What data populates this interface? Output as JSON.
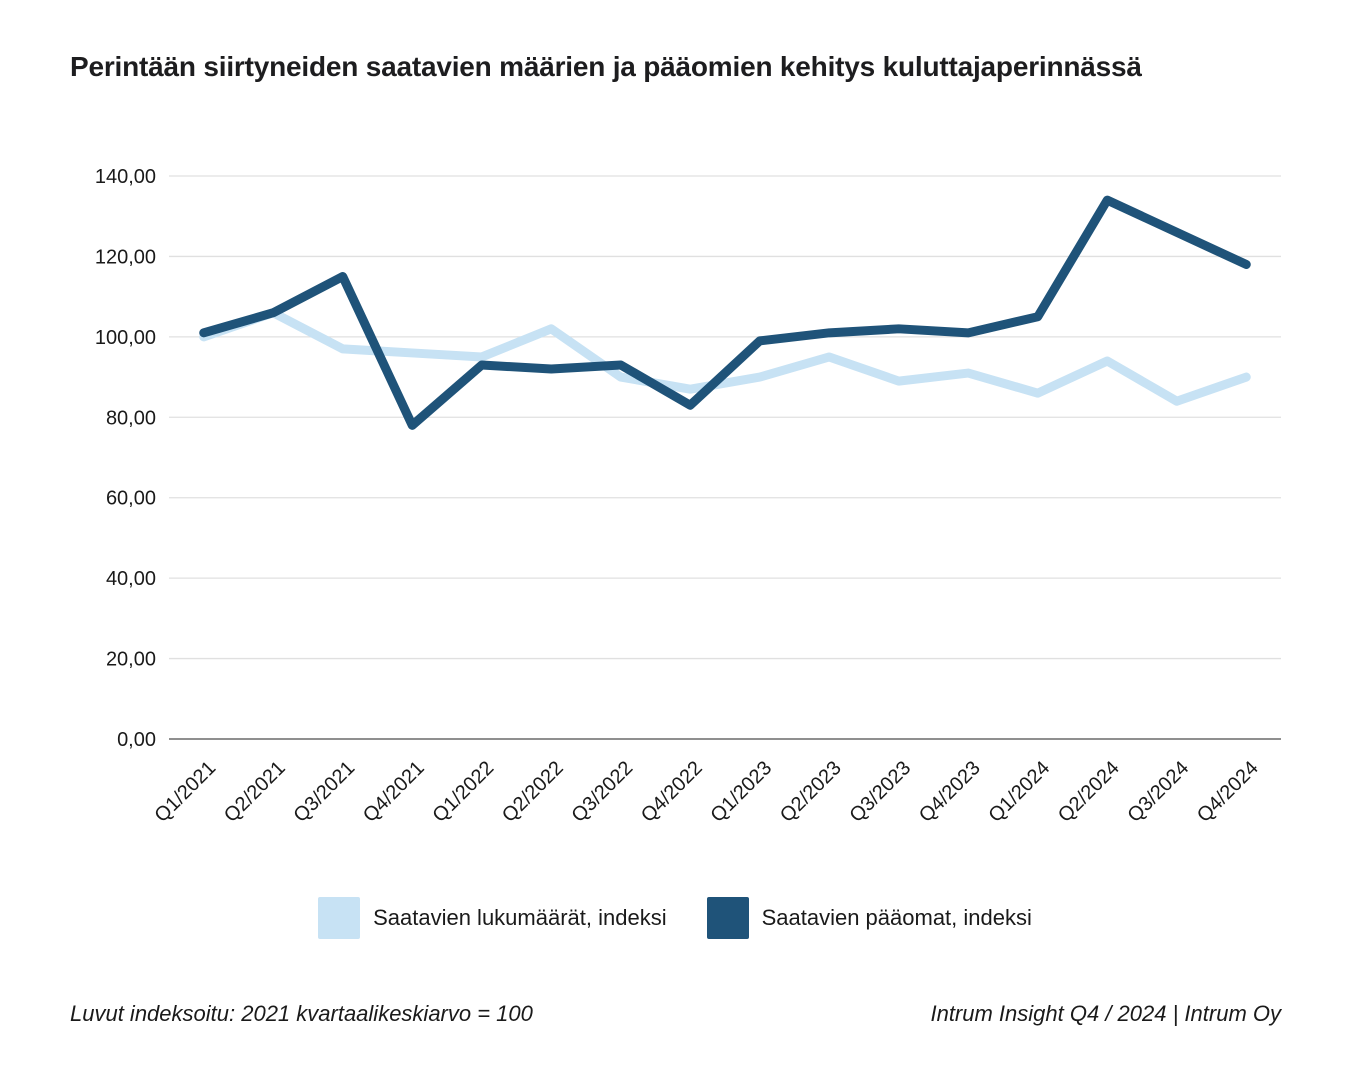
{
  "chart_data": {
    "type": "line",
    "title": "Perintään siirtyneiden saatavien määrien ja pääomien kehitys kuluttajaperinnässä",
    "categories": [
      "Q1/2021",
      "Q2/2021",
      "Q3/2021",
      "Q4/2021",
      "Q1/2022",
      "Q2/2022",
      "Q3/2022",
      "Q4/2022",
      "Q1/2023",
      "Q2/2023",
      "Q3/2023",
      "Q4/2023",
      "Q1/2024",
      "Q2/2024",
      "Q3/2024",
      "Q4/2024"
    ],
    "series": [
      {
        "name": "Saatavien lukumäärät, indeksi",
        "color": "#c7e2f4",
        "values": [
          100,
          106,
          97,
          96,
          95,
          102,
          90,
          87,
          90,
          95,
          89,
          91,
          86,
          94,
          84,
          90
        ]
      },
      {
        "name": "Saatavien pääomat, indeksi",
        "color": "#1f5379",
        "values": [
          101,
          106,
          115,
          78,
          93,
          92,
          93,
          83,
          99,
          101,
          102,
          101,
          105,
          134,
          126,
          118
        ]
      }
    ],
    "xlabel": "",
    "ylabel": "",
    "ylim": [
      0,
      140
    ],
    "ytick_step": 20,
    "ytick_labels": [
      "0,00",
      "20,00",
      "40,00",
      "60,00",
      "80,00",
      "100,00",
      "120,00",
      "140,00"
    ],
    "grid": true,
    "legend_position": "bottom",
    "colors": {
      "gridline": "#e0e0e0",
      "zero_axis_line": "#7f7f7f",
      "axis_text": "#1a1a1a"
    }
  },
  "footer": {
    "note_left": "Luvut indeksoitu: 2021 kvartaalikeskiarvo = 100",
    "note_right": "Intrum Insight Q4 / 2024 | Intrum Oy"
  }
}
